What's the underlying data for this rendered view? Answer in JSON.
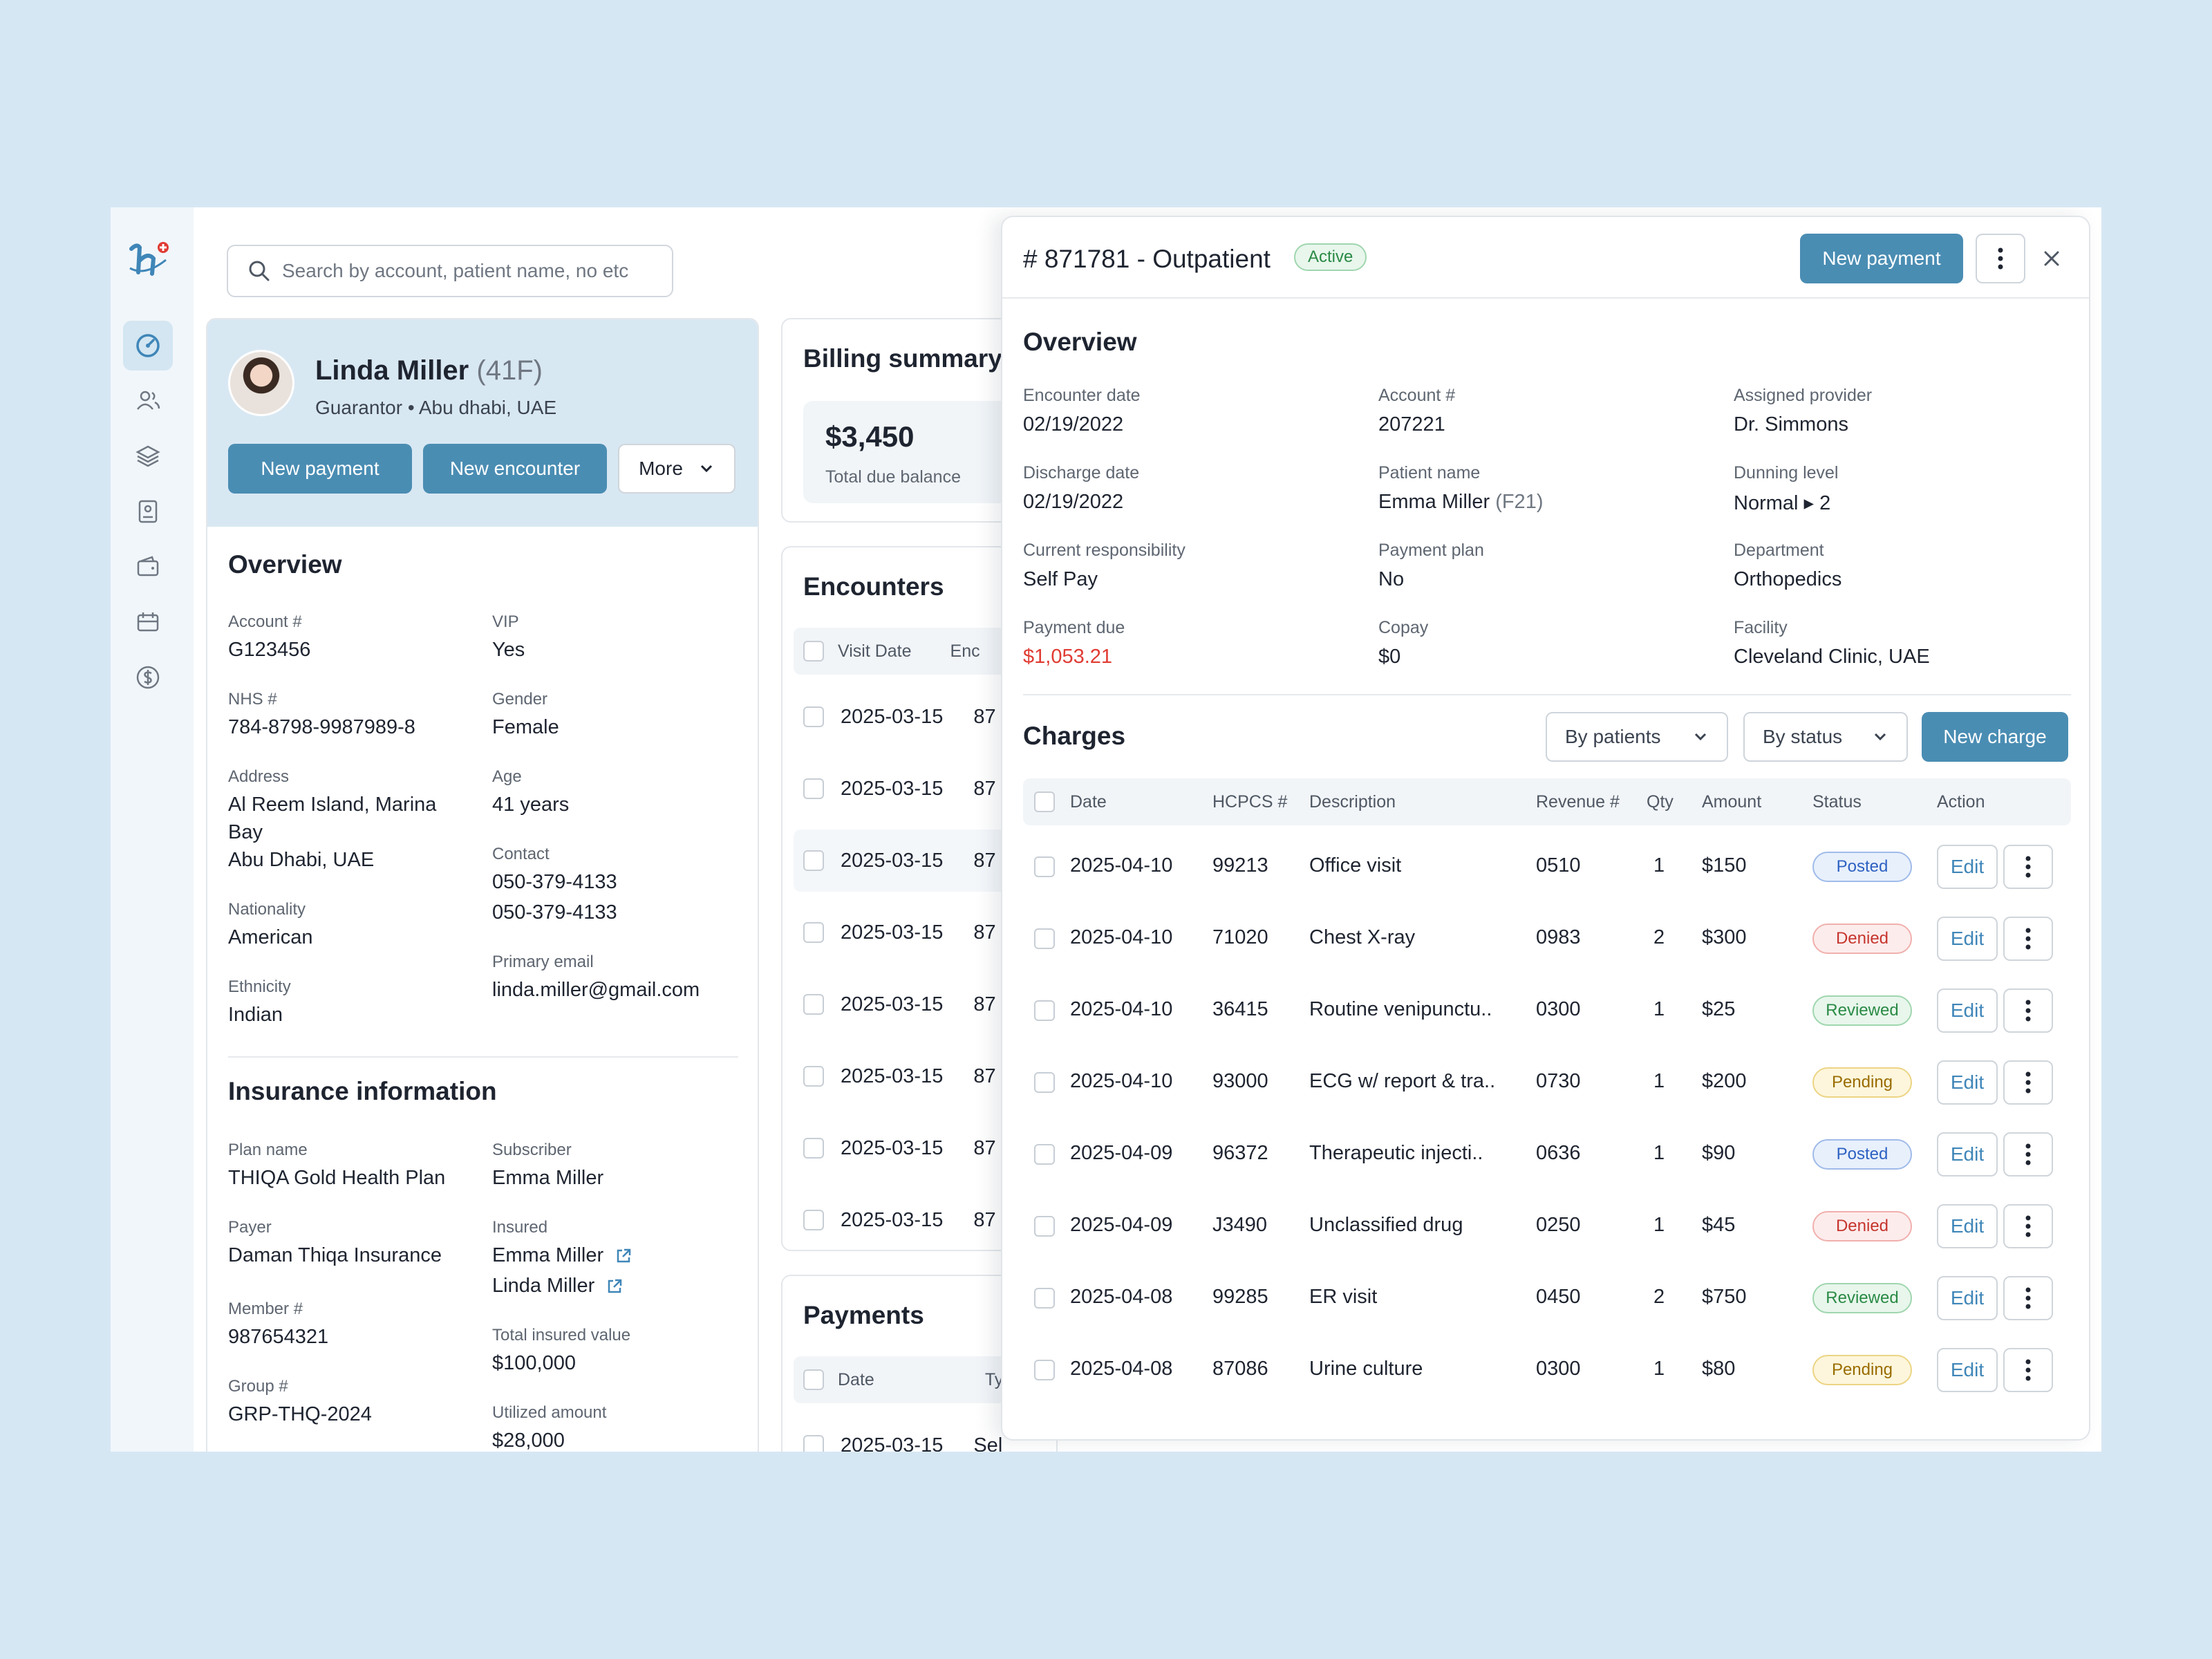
{
  "search": {
    "placeholder": "Search by account, patient name, no etc"
  },
  "patient": {
    "name": "Linda Miller",
    "age_sex": "(41F)",
    "subtitle": "Guarantor • Abu dhabi, UAE",
    "buttons": {
      "new_payment": "New payment",
      "new_encounter": "New encounter",
      "more": "More"
    }
  },
  "overview": {
    "title": "Overview",
    "account_label": "Account #",
    "account": "G123456",
    "vip_label": "VIP",
    "vip": "Yes",
    "nhs_label": "NHS #",
    "nhs": "784-8798-9987989-8",
    "gender_label": "Gender",
    "gender": "Female",
    "address_label": "Address",
    "address_line1": "Al Reem Island, Marina",
    "address_line2": "Bay",
    "address_line3": "Abu Dhabi, UAE",
    "age_label": "Age",
    "age": "41 years",
    "contact_label": "Contact",
    "contact1": "050-379-4133",
    "contact2": "050-379-4133",
    "nationality_label": "Nationality",
    "nationality": "American",
    "email_label": "Primary email",
    "email": "linda.miller@gmail.com",
    "ethnicity_label": "Ethnicity",
    "ethnicity": "Indian"
  },
  "insurance": {
    "title": "Insurance information",
    "plan_label": "Plan name",
    "plan": "THIQA Gold Health Plan",
    "subscriber_label": "Subscriber",
    "subscriber": "Emma Miller",
    "payer_label": "Payer",
    "payer": "Daman Thiqa Insurance",
    "insured_label": "Insured",
    "insured1": "Emma Miller",
    "insured2": "Linda Miller",
    "member_label": "Member #",
    "member": "987654321",
    "total_label": "Total insured value",
    "total": "$100,000",
    "group_label": "Group #",
    "group": "GRP-THQ-2024",
    "utilized_label": "Utilized amount",
    "utilized": "$28,000"
  },
  "billing": {
    "title": "Billing summary",
    "amount": "$3,450",
    "amount_label": "Total due balance"
  },
  "encounters": {
    "title": "Encounters",
    "col_visit": "Visit Date",
    "col_enc": "Enc",
    "rows": [
      {
        "date": "2025-03-15",
        "enc": "87"
      },
      {
        "date": "2025-03-15",
        "enc": "87"
      },
      {
        "date": "2025-03-15",
        "enc": "87"
      },
      {
        "date": "2025-03-15",
        "enc": "87"
      },
      {
        "date": "2025-03-15",
        "enc": "87"
      },
      {
        "date": "2025-03-15",
        "enc": "87"
      },
      {
        "date": "2025-03-15",
        "enc": "87"
      },
      {
        "date": "2025-03-15",
        "enc": "87"
      }
    ]
  },
  "payments": {
    "title": "Payments",
    "col_date": "Date",
    "col_type": "Ty",
    "row_date": "2025-03-15",
    "row_type": "Sel"
  },
  "panel": {
    "title": "# 871781 - Outpatient",
    "status": "Active",
    "new_payment": "New payment",
    "overview_title": "Overview",
    "fields": {
      "encounter_date_label": "Encounter date",
      "encounter_date": "02/19/2022",
      "account_label": "Account #",
      "account": "207221",
      "provider_label": "Assigned provider",
      "provider": "Dr. Simmons",
      "discharge_label": "Discharge date",
      "discharge": "02/19/2022",
      "patient_label": "Patient name",
      "patient": "Emma Miller",
      "patient_suffix": "(F21)",
      "dunning_label": "Dunning level",
      "dunning": "Normal ▸ 2",
      "responsibility_label": "Current responsibility",
      "responsibility": "Self Pay",
      "plan_label": "Payment plan",
      "plan": "No",
      "department_label": "Department",
      "department": "Orthopedics",
      "due_label": "Payment due",
      "due": "$1,053.21",
      "copay_label": "Copay",
      "copay": "$0",
      "facility_label": "Facility",
      "facility": "Cleveland Clinic, UAE"
    },
    "charges": {
      "title": "Charges",
      "by_patients": "By patients",
      "by_status": "By status",
      "new_charge": "New charge",
      "columns": {
        "date": "Date",
        "hcpcs": "HCPCS #",
        "description": "Description",
        "revenue": "Revenue #",
        "qty": "Qty",
        "amount": "Amount",
        "status": "Status",
        "action": "Action"
      },
      "edit_label": "Edit",
      "rows": [
        {
          "date": "2025-04-10",
          "hcpcs": "99213",
          "description": "Office visit",
          "revenue": "0510",
          "qty": "1",
          "amount": "$150",
          "status": "Posted"
        },
        {
          "date": "2025-04-10",
          "hcpcs": "71020",
          "description": "Chest X-ray",
          "revenue": "0983",
          "qty": "2",
          "amount": "$300",
          "status": "Denied"
        },
        {
          "date": "2025-04-10",
          "hcpcs": "36415",
          "description": "Routine venipunctu..",
          "revenue": "0300",
          "qty": "1",
          "amount": "$25",
          "status": "Reviewed"
        },
        {
          "date": "2025-04-10",
          "hcpcs": "93000",
          "description": "ECG w/ report & tra..",
          "revenue": "0730",
          "qty": "1",
          "amount": "$200",
          "status": "Pending"
        },
        {
          "date": "2025-04-09",
          "hcpcs": "96372",
          "description": "Therapeutic injecti..",
          "revenue": "0636",
          "qty": "1",
          "amount": "$90",
          "status": "Posted"
        },
        {
          "date": "2025-04-09",
          "hcpcs": "J3490",
          "description": "Unclassified drug",
          "revenue": "0250",
          "qty": "1",
          "amount": "$45",
          "status": "Denied"
        },
        {
          "date": "2025-04-08",
          "hcpcs": "99285",
          "description": "ER visit",
          "revenue": "0450",
          "qty": "2",
          "amount": "$750",
          "status": "Reviewed"
        },
        {
          "date": "2025-04-08",
          "hcpcs": "87086",
          "description": "Urine culture",
          "revenue": "0300",
          "qty": "1",
          "amount": "$80",
          "status": "Pending"
        }
      ]
    }
  },
  "colors": {
    "primary": "#4a8db3",
    "background": "#d6e7f4",
    "danger": "#e03b33"
  }
}
